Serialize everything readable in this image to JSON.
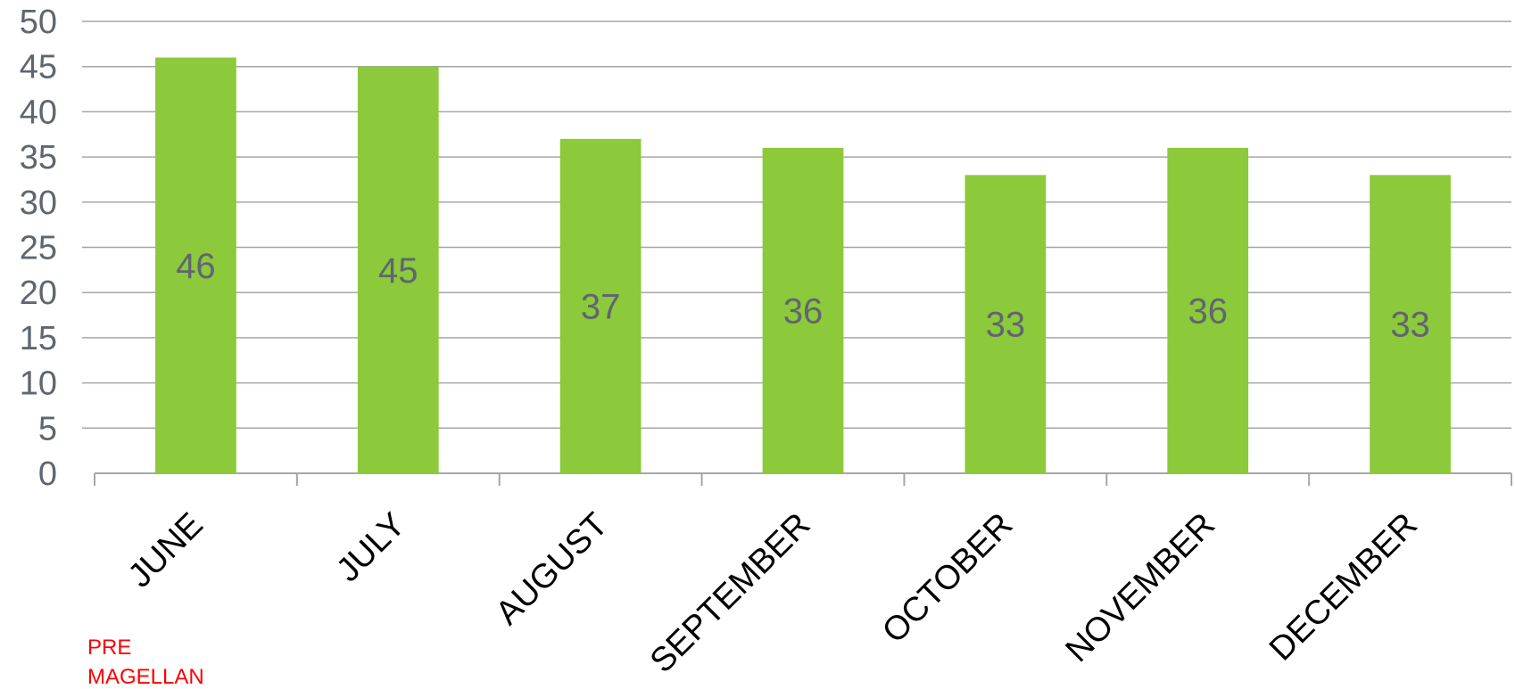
{
  "chart_data": {
    "type": "bar",
    "categories": [
      "JUNE",
      "JULY",
      "AUGUST",
      "SEPTEMBER",
      "OCTOBER",
      "NOVEMBER",
      "DECEMBER"
    ],
    "values": [
      46,
      45,
      37,
      36,
      33,
      36,
      33
    ],
    "data_labels": [
      "46",
      "45",
      "37",
      "36",
      "33",
      "36",
      "33"
    ],
    "ylim": [
      0,
      50
    ],
    "yticks": [
      0,
      5,
      10,
      15,
      20,
      25,
      30,
      35,
      40,
      45,
      50
    ],
    "grid": true,
    "bar_color": "#8cc93b",
    "grid_color": "#a6a6a6",
    "label_color": "#5f6670"
  },
  "annotation": {
    "lines": [
      "PRE",
      "MAGELLAN"
    ],
    "color": "#ff0000"
  }
}
